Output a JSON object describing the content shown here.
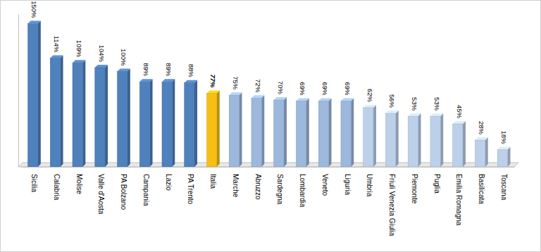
{
  "chart_data": {
    "type": "bar",
    "categories": [
      "Sicilia",
      "Calabria",
      "Molise",
      "Valle d'Aosta",
      "PA Bolzano",
      "Campania",
      "Lazio",
      "PA Trento",
      "Italia",
      "Marche",
      "Abruzzo",
      "Sardegna",
      "Lombardia",
      "Veneto",
      "Liguria",
      "Umbria",
      "Friuli Venezia Giulia",
      "Piemonte",
      "Puglia",
      "Emilia Romagna",
      "Basilicata",
      "Toscana"
    ],
    "values": [
      150,
      114,
      109,
      104,
      100,
      89,
      89,
      88,
      77,
      75,
      72,
      70,
      69,
      69,
      69,
      62,
      56,
      53,
      53,
      45,
      28,
      18
    ],
    "value_labels": [
      "150%",
      "114%",
      "109%",
      "104%",
      "100%",
      "89%",
      "89%",
      "88%",
      "77%",
      "75%",
      "72%",
      "70%",
      "69%",
      "69%",
      "69%",
      "62%",
      "56%",
      "53%",
      "53%",
      "45%",
      "28%",
      "18%"
    ],
    "colors": [
      "#4f81bd",
      "#4f81bd",
      "#4f81bd",
      "#4f81bd",
      "#4f81bd",
      "#4f81bd",
      "#4f81bd",
      "#4f81bd",
      "#f7bf16",
      "#9cb8dc",
      "#9cb8dc",
      "#9cb8dc",
      "#9cb8dc",
      "#9cb8dc",
      "#9cb8dc",
      "#bcd0ea",
      "#bcd0ea",
      "#bcd0ea",
      "#bcd0ea",
      "#bcd0ea",
      "#bcd0ea",
      "#bcd0ea"
    ],
    "ylim": [
      0,
      160
    ],
    "data_labels": true,
    "tick_labels": "x"
  }
}
